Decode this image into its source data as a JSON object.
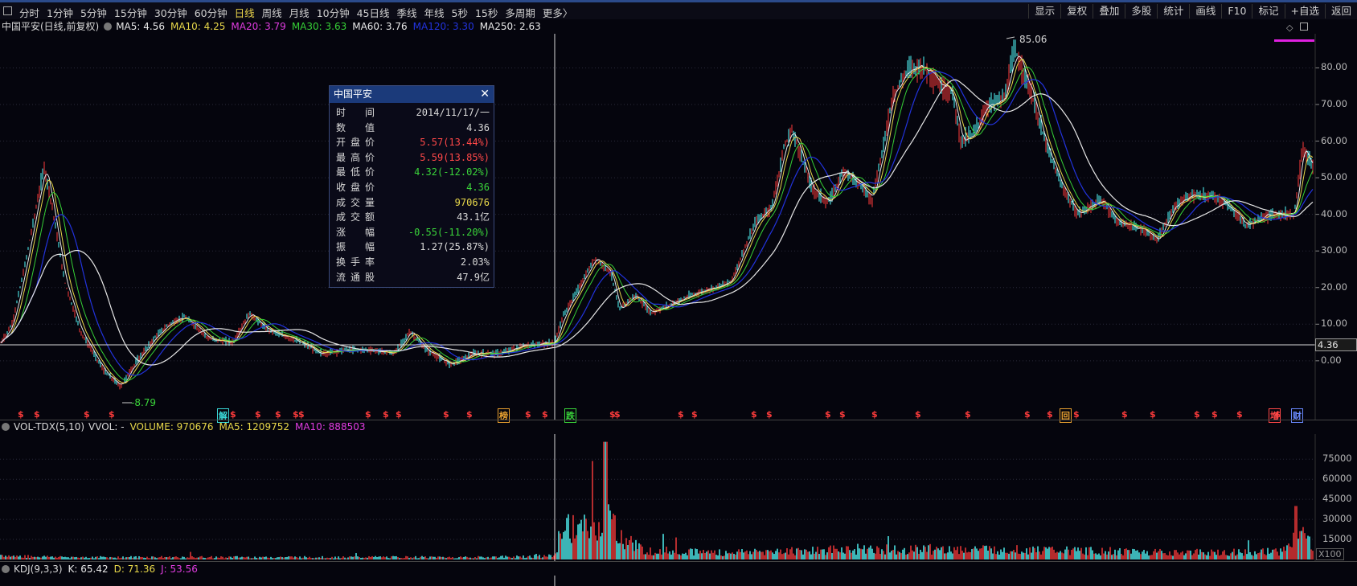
{
  "topbar": {
    "tabs": [
      "分时",
      "1分钟",
      "5分钟",
      "15分钟",
      "30分钟",
      "60分钟",
      "日线",
      "周线",
      "月线",
      "10分钟",
      "45日线",
      "季线",
      "年线",
      "5秒",
      "15秒",
      "多周期",
      "更多〉"
    ],
    "active_tab": "日线",
    "right_tools": [
      "显示",
      "复权",
      "叠加",
      "多股",
      "统计",
      "画线",
      "F10",
      "标记",
      "+自选",
      "返回"
    ]
  },
  "main_header": {
    "title": "中国平安(日线,前复权)",
    "ma5": "MA5: 4.56",
    "ma10": "MA10: 4.25",
    "ma20": "MA20: 3.79",
    "ma30": "MA30: 3.63",
    "ma60": "MA60: 3.76",
    "ma120": "MA120: 3.30",
    "ma250": "MA250: 2.63"
  },
  "colors": {
    "ma5": "#e8e8e8",
    "ma10": "#e8d84a",
    "ma20": "#e03ce0",
    "ma30": "#36d036",
    "ma60": "#e8e8e8",
    "ma120": "#2233dd",
    "ma250": "#e8e8e8",
    "up": "#ff3c3c",
    "down": "#54ffff",
    "ylabel": "#b8b8b8"
  },
  "price_axis": {
    "ticks": [
      "80.00",
      "70.00",
      "60.00",
      "50.00",
      "40.00",
      "30.00",
      "20.00",
      "10.00",
      "0.00"
    ],
    "crosshair_value": "4.36"
  },
  "annotations": {
    "high_label": "85.06",
    "low_label": "-8.79"
  },
  "tooltip": {
    "title": "中国平安",
    "close_icon": "✕",
    "rows": [
      {
        "k": "时间",
        "v": "2014/11/17/一",
        "color": "#d8d8d8"
      },
      {
        "k": "数值",
        "v": "4.36",
        "color": "#d8d8d8"
      },
      {
        "k": "开盘价",
        "v": "5.57(13.44%)",
        "color": "#ff4848"
      },
      {
        "k": "最高价",
        "v": "5.59(13.85%)",
        "color": "#ff4848"
      },
      {
        "k": "最低价",
        "v": "4.32(-12.02%)",
        "color": "#3ad43a"
      },
      {
        "k": "收盘价",
        "v": "4.36",
        "color": "#3ad43a"
      },
      {
        "k": "成交量",
        "v": "970676",
        "color": "#e8d84a"
      },
      {
        "k": "成交额",
        "v": "43.1亿",
        "color": "#d8d8d8"
      },
      {
        "k": "涨幅",
        "v": "-0.55(-11.20%)",
        "color": "#3ad43a"
      },
      {
        "k": "振幅",
        "v": "1.27(25.87%)",
        "color": "#d8d8d8"
      },
      {
        "k": "换手率",
        "v": "2.03%",
        "color": "#d8d8d8"
      },
      {
        "k": "流通股",
        "v": "47.9亿",
        "color": "#d8d8d8"
      }
    ]
  },
  "event_markers": {
    "dollar": "$",
    "special": [
      {
        "label": "解",
        "color": "#3ad8d8"
      },
      {
        "label": "榜",
        "color": "#e8a030"
      },
      {
        "label": "跌",
        "color": "#3ad43a"
      },
      {
        "label": "回",
        "color": "#e8a030"
      },
      {
        "label": "增",
        "color": "#ff4848"
      },
      {
        "label": "财",
        "color": "#6a8aff"
      }
    ]
  },
  "volume_header": {
    "name": "VOL-TDX(5,10)",
    "vvol": "VVOL: -",
    "volume": "VOLUME: 970676",
    "ma5": "MA5: 1209752",
    "ma10": "MA10: 888503"
  },
  "volume_axis": {
    "ticks": [
      "75000",
      "60000",
      "45000",
      "30000",
      "15000"
    ],
    "unit": "X100"
  },
  "kdj_header": {
    "name": "KDJ(9,3,3)",
    "k": "K: 65.42",
    "d": "D: 71.36",
    "j": "J: 53.56"
  },
  "chart_data": {
    "type": "candlestick",
    "title": "中国平安(日线,前复权)",
    "ylim": [
      -10,
      88
    ],
    "price_path": [
      [
        0,
        4.5
      ],
      [
        15,
        10
      ],
      [
        30,
        25
      ],
      [
        45,
        42
      ],
      [
        55,
        53
      ],
      [
        65,
        42
      ],
      [
        80,
        22
      ],
      [
        100,
        8
      ],
      [
        130,
        -3
      ],
      [
        150,
        -7
      ],
      [
        170,
        0
      ],
      [
        195,
        7
      ],
      [
        210,
        10
      ],
      [
        230,
        12
      ],
      [
        260,
        6
      ],
      [
        290,
        5
      ],
      [
        310,
        13
      ],
      [
        330,
        9
      ],
      [
        350,
        7
      ],
      [
        375,
        5
      ],
      [
        400,
        2
      ],
      [
        430,
        3
      ],
      [
        460,
        3
      ],
      [
        490,
        2
      ],
      [
        510,
        8
      ],
      [
        530,
        3
      ],
      [
        560,
        -1
      ],
      [
        590,
        2
      ],
      [
        620,
        2
      ],
      [
        650,
        4
      ],
      [
        690,
        5
      ],
      [
        700,
        12
      ],
      [
        720,
        20
      ],
      [
        740,
        28
      ],
      [
        760,
        24
      ],
      [
        770,
        14
      ],
      [
        790,
        18
      ],
      [
        810,
        13
      ],
      [
        830,
        15
      ],
      [
        860,
        18
      ],
      [
        890,
        20
      ],
      [
        910,
        22
      ],
      [
        940,
        38
      ],
      [
        960,
        42
      ],
      [
        975,
        58
      ],
      [
        985,
        63
      ],
      [
        995,
        57
      ],
      [
        1010,
        47
      ],
      [
        1030,
        43
      ],
      [
        1050,
        52
      ],
      [
        1070,
        48
      ],
      [
        1085,
        44
      ],
      [
        1100,
        60
      ],
      [
        1110,
        72
      ],
      [
        1130,
        80
      ],
      [
        1150,
        80
      ],
      [
        1170,
        75
      ],
      [
        1185,
        73
      ],
      [
        1195,
        60
      ],
      [
        1210,
        62
      ],
      [
        1230,
        70
      ],
      [
        1250,
        72
      ],
      [
        1262,
        85
      ],
      [
        1280,
        75
      ],
      [
        1300,
        60
      ],
      [
        1320,
        48
      ],
      [
        1340,
        40
      ],
      [
        1370,
        44
      ],
      [
        1390,
        38
      ],
      [
        1420,
        36
      ],
      [
        1440,
        33
      ],
      [
        1460,
        42
      ],
      [
        1480,
        45
      ],
      [
        1510,
        45
      ],
      [
        1530,
        42
      ],
      [
        1550,
        37
      ],
      [
        1580,
        40
      ],
      [
        1610,
        40
      ],
      [
        1620,
        58
      ],
      [
        1636,
        52
      ]
    ],
    "volume_path": [
      [
        0,
        3
      ],
      [
        100,
        2
      ],
      [
        200,
        2
      ],
      [
        300,
        2
      ],
      [
        400,
        2
      ],
      [
        500,
        2
      ],
      [
        600,
        2
      ],
      [
        690,
        3
      ],
      [
        700,
        30
      ],
      [
        720,
        25
      ],
      [
        740,
        28
      ],
      [
        760,
        35
      ],
      [
        770,
        22
      ],
      [
        800,
        8
      ],
      [
        900,
        6
      ],
      [
        1000,
        8
      ],
      [
        1100,
        9
      ],
      [
        1200,
        9
      ],
      [
        1300,
        8
      ],
      [
        1400,
        7
      ],
      [
        1500,
        6
      ],
      [
        1600,
        7
      ],
      [
        1612,
        25
      ],
      [
        1636,
        10
      ]
    ]
  }
}
